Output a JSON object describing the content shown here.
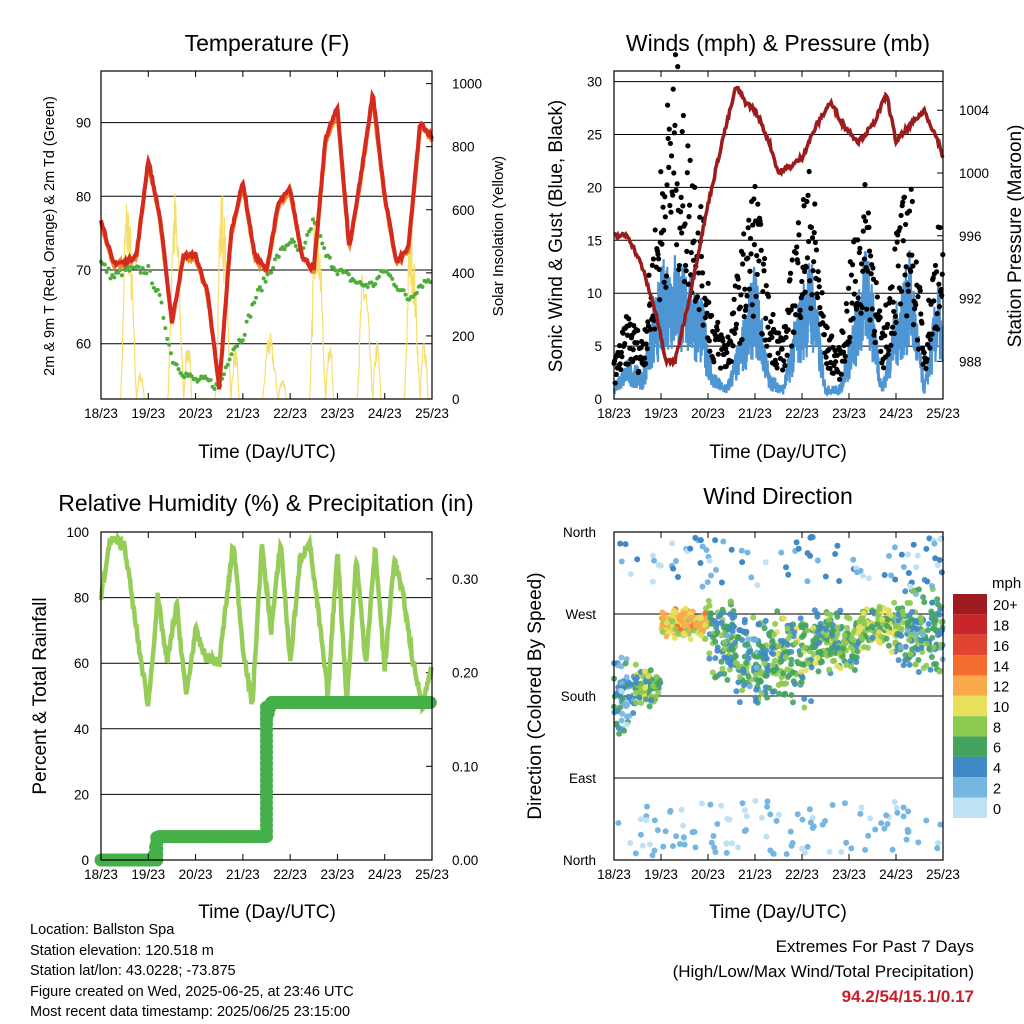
{
  "chart_data": [
    {
      "type": "line",
      "title": "Temperature (F)",
      "xlabel": "Time (Day/UTC)",
      "ylabel": "2m & 9m T (Red, Orange) & 2m Td (Green)",
      "ylabel_right": "Solar Insolation (Yellow)",
      "x_ticks": [
        "18/23",
        "19/23",
        "20/23",
        "21/23",
        "22/23",
        "23/23",
        "24/23",
        "25/23"
      ],
      "y_ticks": [
        60,
        70,
        80,
        90
      ],
      "y_right_ticks": [
        0,
        200,
        400,
        600,
        800,
        1000
      ],
      "ylim": [
        52.5,
        97
      ],
      "ylim_right": [
        0,
        1040
      ],
      "x": [
        0,
        0.25,
        0.5,
        0.75,
        1,
        1.25,
        1.5,
        1.75,
        2,
        2.25,
        2.5,
        2.75,
        3,
        3.25,
        3.5,
        3.75,
        4,
        4.25,
        4.5,
        4.75,
        5,
        5.25,
        5.5,
        5.75,
        6,
        6.25,
        6.5,
        6.75,
        7
      ],
      "series": [
        {
          "color": "#d42a20",
          "values": [
            77,
            71,
            71,
            72,
            85,
            77,
            63,
            72,
            72,
            67,
            54,
            75,
            82,
            72,
            70,
            79,
            81,
            72,
            70,
            88,
            92,
            73,
            83,
            94,
            80,
            71,
            73,
            90,
            88
          ]
        },
        {
          "color": "#f08a28",
          "values": [
            76.5,
            70.7,
            70.8,
            71.8,
            84.6,
            76.7,
            62.8,
            71.7,
            71.6,
            66.8,
            54.2,
            74.6,
            81.5,
            71.8,
            69.8,
            78.6,
            80.6,
            71.8,
            69.8,
            87.5,
            91.5,
            72.8,
            82.6,
            93.4,
            79.6,
            70.8,
            72.7,
            89.5,
            87.7
          ]
        },
        {
          "color": "#4ead3a",
          "values": [
            71,
            69,
            70,
            70,
            70,
            66,
            58,
            56,
            55,
            55,
            54,
            59,
            61,
            66,
            69,
            72,
            74,
            72,
            77,
            72,
            70,
            69,
            68,
            68,
            70,
            68,
            66,
            68,
            69
          ]
        },
        {
          "color": "#f7de6c",
          "axis": "right",
          "values": [
            120,
            50,
            950,
            0,
            450,
            0,
            950,
            0,
            950,
            0,
            950,
            0,
            850,
            0,
            300,
            0,
            350,
            0,
            950,
            0,
            1000,
            0,
            600,
            0,
            950,
            0,
            800,
            0,
            1000
          ]
        }
      ]
    },
    {
      "type": "scatter",
      "title": "Winds (mph) & Pressure (mb)",
      "xlabel": "Time (Day/UTC)",
      "ylabel": "Sonic Wind & Gust (Blue, Black)",
      "ylabel_right": "Station Pressure (Maroon)",
      "x_ticks": [
        "18/23",
        "19/23",
        "20/23",
        "21/23",
        "22/23",
        "23/23",
        "24/23",
        "25/23"
      ],
      "y_ticks": [
        0,
        5,
        10,
        15,
        20,
        25,
        30
      ],
      "y_right_ticks": [
        988,
        992,
        996,
        1000,
        1004
      ],
      "ylim": [
        0,
        31
      ],
      "ylim_right": [
        985.6,
        1006.5
      ],
      "pressure": {
        "x": [
          0,
          0.3,
          0.6,
          0.9,
          1.1,
          1.3,
          1.6,
          2,
          2.3,
          2.6,
          2.8,
          3,
          3.3,
          3.5,
          3.8,
          4,
          4.3,
          4.6,
          4.9,
          5.2,
          5.5,
          5.8,
          6,
          6.3,
          6.6,
          6.9,
          7
        ],
        "values": [
          996,
          996,
          994,
          991,
          988,
          988,
          992,
          998,
          1002,
          1005.5,
          1004.5,
          1004,
          1002,
          1000,
          1000.5,
          1001,
          1003,
          1004.5,
          1003,
          1002,
          1003,
          1005,
          1002,
          1003,
          1004,
          1002,
          1001
        ]
      },
      "gust": {
        "x": [
          0,
          0.3,
          0.6,
          0.9,
          1.1,
          1.3,
          1.5,
          1.7,
          1.9,
          2.1,
          2.4,
          2.7,
          3,
          3.3,
          3.6,
          3.9,
          4.2,
          4.5,
          4.8,
          5.1,
          5.4,
          5.7,
          6,
          6.3,
          6.6,
          6.9,
          7
        ],
        "values": [
          3,
          7,
          5,
          15,
          23,
          28,
          22,
          20,
          15,
          7,
          5,
          12,
          18,
          8,
          5,
          15,
          19,
          6,
          4,
          13,
          18,
          5,
          14,
          18,
          5,
          15,
          12
        ]
      },
      "wind": {
        "x": [
          0,
          0.3,
          0.6,
          0.9,
          1.1,
          1.3,
          1.5,
          1.7,
          1.9,
          2.1,
          2.4,
          2.7,
          3,
          3.3,
          3.6,
          3.9,
          4.2,
          4.5,
          4.8,
          5.1,
          5.4,
          5.7,
          6,
          6.3,
          6.6,
          6.9,
          7
        ],
        "values": [
          1,
          3,
          2,
          8,
          11,
          11,
          10,
          9,
          7,
          2,
          1,
          5,
          10,
          2,
          1,
          7,
          11,
          1,
          1,
          6,
          12,
          1,
          7,
          11,
          1,
          9,
          5
        ]
      }
    },
    {
      "type": "line",
      "title": "Relative Humidity (%) & Precipitation (in)",
      "xlabel": "Time (Day/UTC)",
      "ylabel": "Percent & Total Rainfall",
      "x_ticks": [
        "18/23",
        "19/23",
        "20/23",
        "21/23",
        "22/23",
        "23/23",
        "24/23",
        "25/23"
      ],
      "y_ticks": [
        0,
        20,
        40,
        60,
        80,
        100
      ],
      "y_right_ticks": [
        "0.00",
        "0.10",
        "0.20",
        "0.30"
      ],
      "ylim": [
        0,
        100
      ],
      "ylim_right": [
        0,
        0.35
      ],
      "humidity": {
        "x": [
          0,
          0.2,
          0.5,
          0.8,
          1.0,
          1.2,
          1.4,
          1.6,
          1.8,
          2.0,
          2.2,
          2.5,
          2.8,
          3.0,
          3.2,
          3.4,
          3.6,
          3.8,
          4.0,
          4.2,
          4.4,
          4.6,
          4.8,
          5.0,
          5.2,
          5.4,
          5.6,
          5.8,
          6.0,
          6.2,
          6.4,
          6.6,
          6.8,
          7.0
        ],
        "values": [
          80,
          98,
          96,
          65,
          47,
          80,
          60,
          78,
          50,
          70,
          62,
          60,
          97,
          65,
          47,
          96,
          70,
          97,
          60,
          90,
          98,
          75,
          50,
          95,
          48,
          92,
          60,
          95,
          58,
          92,
          80,
          60,
          47,
          60
        ]
      },
      "precip": {
        "x": [
          0,
          1.1,
          1.2,
          3.5,
          3.5,
          3.6,
          7
        ],
        "values": [
          0,
          0,
          0.025,
          0.025,
          0.15,
          0.168,
          0.168
        ]
      }
    },
    {
      "type": "scatter",
      "title": "Wind Direction",
      "xlabel": "Time (Day/UTC)",
      "ylabel": "Direction (Colored By Speed)",
      "x_ticks": [
        "18/23",
        "19/23",
        "20/23",
        "21/23",
        "22/23",
        "23/23",
        "24/23",
        "25/23"
      ],
      "y_ticks": [
        "North",
        "East",
        "South",
        "West",
        "North"
      ],
      "y_tick_degrees": [
        0,
        90,
        180,
        270,
        360
      ],
      "ylim": [
        0,
        360
      ],
      "legend": {
        "title": "mph",
        "labels": [
          "20+",
          "18",
          "16",
          "14",
          "12",
          "10",
          "8",
          "6",
          "4",
          "2",
          "0"
        ],
        "colors": [
          "#9f1b1f",
          "#c9262a",
          "#e1442f",
          "#f46d2f",
          "#f9a84a",
          "#e8e05a",
          "#8cc94f",
          "#44a35f",
          "#3f89c6",
          "#76b6e2",
          "#bfe1f4"
        ]
      },
      "clusters": [
        {
          "x0": 0,
          "x1": 0.45,
          "dir": 180,
          "spread": 50,
          "speed": 3
        },
        {
          "x0": 0.45,
          "x1": 1.0,
          "dir": 190,
          "spread": 25,
          "speed": 6
        },
        {
          "x0": 1.0,
          "x1": 2.0,
          "dir": 260,
          "spread": 18,
          "speed": 10
        },
        {
          "x0": 2.0,
          "x1": 2.6,
          "dir": 240,
          "spread": 50,
          "speed": 5
        },
        {
          "x0": 2.6,
          "x1": 3.3,
          "dir": 220,
          "spread": 60,
          "speed": 5
        },
        {
          "x0": 3.3,
          "x1": 4.2,
          "dir": 225,
          "spread": 60,
          "speed": 6
        },
        {
          "x0": 4.2,
          "x1": 5.2,
          "dir": 240,
          "spread": 40,
          "speed": 6
        },
        {
          "x0": 5.2,
          "x1": 6.0,
          "dir": 255,
          "spread": 30,
          "speed": 7
        },
        {
          "x0": 6.0,
          "x1": 7.0,
          "dir": 255,
          "spread": 55,
          "speed": 5
        }
      ]
    }
  ],
  "info": {
    "location": "Location: Ballston Spa",
    "elevation": "Station elevation: 120.518 m",
    "latlon": "Station lat/lon: 43.0228; -73.875",
    "created": "Figure created on Wed, 2025-06-25, at 23:46 UTC",
    "recent": "Most recent data timestamp: 2025/06/25 23:15:00"
  },
  "extremes": {
    "title": "Extremes For Past 7 Days",
    "subtitle": "(High/Low/Max Wind/Total Precipitation)",
    "values": "94.2/54/15.1/0.17"
  }
}
